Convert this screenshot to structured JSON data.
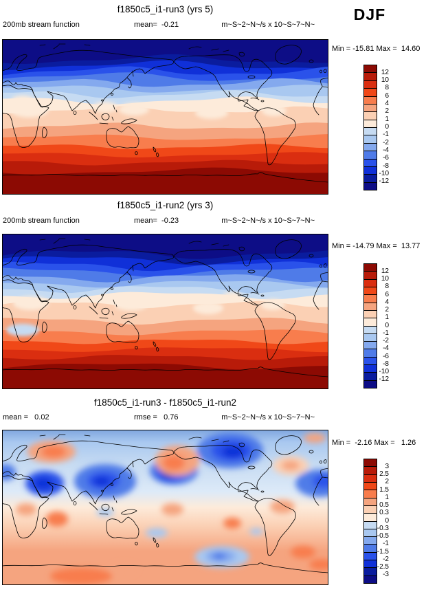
{
  "season": "DJF",
  "palette": [
    "#8C0A03",
    "#B81B09",
    "#DA2E10",
    "#F04818",
    "#F87D4D",
    "#F5A47F",
    "#FBD0B4",
    "#FDEBDA",
    "#C6DBF2",
    "#A9C8F0",
    "#84A9EE",
    "#4F7BE8",
    "#2A52EA",
    "#1030D8",
    "#0A1C9E",
    "#0D0D86"
  ],
  "panels": [
    {
      "title": "f1850c5_i1-run3 (yrs 5)",
      "header_left": "200mb stream function",
      "header_mid": "mean=  -0.21",
      "header_units": "m~S~2~N~/s x 10~S~7~N~",
      "minmax": "Min = -15.81 Max =  14.60",
      "colorbar_labels": [
        "12",
        "10",
        "8",
        "6",
        "4",
        "2",
        "1",
        "0",
        "-1",
        "-2",
        "-4",
        "-6",
        "-8",
        "-10",
        "-12"
      ]
    },
    {
      "title": "f1850c5_i1-run2 (yrs 3)",
      "header_left": "200mb stream function",
      "header_mid": "mean=  -0.23",
      "header_units": "m~S~2~N~/s x 10~S~7~N~",
      "minmax": "Min = -14.79 Max =  13.77",
      "colorbar_labels": [
        "12",
        "10",
        "8",
        "6",
        "4",
        "2",
        "1",
        "0",
        "-1",
        "-2",
        "-4",
        "-6",
        "-8",
        "-10",
        "-12"
      ]
    },
    {
      "title": "f1850c5_i1-run3 - f1850c5_i1-run2",
      "header_left": "mean =   0.02",
      "header_mid": "rmse =   0.76",
      "header_units": "m~S~2~N~/s x 10~S~7~N~",
      "minmax": "Min =  -2.16 Max =   1.26",
      "colorbar_labels": [
        "3",
        "2.5",
        "2",
        "1.5",
        "1",
        "0.5",
        "0.3",
        "0",
        "-0.3",
        "-0.5",
        "-1",
        "-1.5",
        "-2",
        "-2.5",
        "-3"
      ]
    }
  ],
  "chart_data": [
    {
      "type": "heatmap",
      "subtype": "filled-contour world map",
      "title": "f1850c5_i1-run3 (yrs 5)",
      "variable": "200mb stream function",
      "units": "m~S~2~N~/s x 10~S~7~N~",
      "season": "DJF",
      "mean": -0.21,
      "min": -15.81,
      "max": 14.6,
      "contour_levels": [
        -12,
        -10,
        -8,
        -6,
        -4,
        -2,
        -1,
        0,
        1,
        2,
        4,
        6,
        8,
        10,
        12
      ],
      "projection": "cylindrical equidistant, lon 0-360, lat 90N-90S",
      "pattern": "zonal bands: strongly negative (dark blue) over the Arctic grading through zero near 25N to strongly positive (dark red) over the Antarctic",
      "legend_position": "right",
      "colormap": "blue-white-red, 16 classes"
    },
    {
      "type": "heatmap",
      "subtype": "filled-contour world map",
      "title": "f1850c5_i1-run2 (yrs 3)",
      "variable": "200mb stream function",
      "units": "m~S~2~N~/s x 10~S~7~N~",
      "season": "DJF",
      "mean": -0.23,
      "min": -14.79,
      "max": 13.77,
      "contour_levels": [
        -12,
        -10,
        -8,
        -6,
        -4,
        -2,
        -1,
        0,
        1,
        2,
        4,
        6,
        8,
        10,
        12
      ],
      "projection": "cylindrical equidistant, lon 0-360, lat 90N-90S",
      "pattern": "same zonal structure as run3: negative NH, positive SH",
      "legend_position": "right",
      "colormap": "blue-white-red, 16 classes"
    },
    {
      "type": "heatmap",
      "subtype": "filled-contour difference map",
      "title": "f1850c5_i1-run3 - f1850c5_i1-run2",
      "units": "m~S~2~N~/s x 10~S~7~N~",
      "season": "DJF",
      "mean": 0.02,
      "rmse": 0.76,
      "min": -2.16,
      "max": 1.26,
      "contour_levels": [
        -3,
        -2.5,
        -2,
        -1.5,
        -1,
        -0.5,
        -0.3,
        0,
        0.3,
        0.5,
        1,
        1.5,
        2,
        2.5,
        3
      ],
      "projection": "cylindrical equidistant, lon 0-360, lat 90N-90S",
      "pattern": "patchy anomalies: negative (blue) cells over Canada, East Asia, Middle East, N Pacific and S Pacific; positive (orange) cells over Scandinavia, NE Pacific, N Atlantic and most of the southern hemisphere",
      "legend_position": "right",
      "colormap": "blue-white-red, 16 classes"
    }
  ]
}
